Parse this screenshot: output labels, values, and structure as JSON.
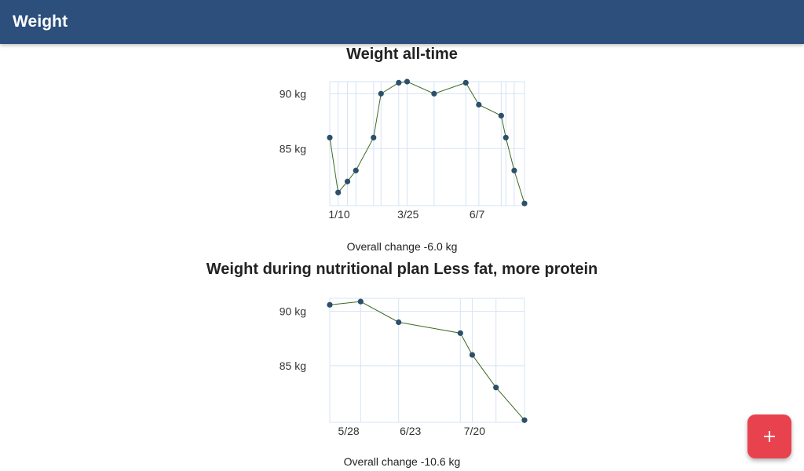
{
  "appbar": {
    "title": "Weight"
  },
  "fab": {
    "icon": "plus-icon",
    "color": "#e8424f"
  },
  "colors": {
    "appbar": "#2c4f7c",
    "line": "#3a6b1f",
    "point": "#2c4f6b",
    "grid": "#d6e3f5"
  },
  "charts": [
    {
      "title": "Weight all-time",
      "overall_change": "Overall change -6.0 kg"
    },
    {
      "title": "Weight during nutritional plan Less fat, more protein",
      "overall_change": "Overall change -10.6 kg"
    }
  ],
  "chart_data": [
    {
      "type": "line",
      "title": "Weight all-time",
      "ylabel_unit": "kg",
      "y_ticks": [
        {
          "value": 85,
          "label": "85 kg"
        },
        {
          "value": 90,
          "label": "90 kg"
        }
      ],
      "x_ticks": [
        {
          "x": 0,
          "label": "1/10"
        },
        {
          "x": 74,
          "label": "3/25"
        },
        {
          "x": 148,
          "label": "6/7"
        }
      ],
      "xlim": [
        0,
        209
      ],
      "ylim": [
        79.8,
        91.1
      ],
      "grid": true,
      "points": [
        {
          "x": 0,
          "y": 86.0
        },
        {
          "x": 9,
          "y": 81.0
        },
        {
          "x": 19,
          "y": 82.0
        },
        {
          "x": 28,
          "y": 83.0
        },
        {
          "x": 47,
          "y": 86.0
        },
        {
          "x": 55,
          "y": 90.0
        },
        {
          "x": 74,
          "y": 91.0
        },
        {
          "x": 83,
          "y": 91.1
        },
        {
          "x": 112,
          "y": 90.0
        },
        {
          "x": 146,
          "y": 91.0
        },
        {
          "x": 160,
          "y": 89.0
        },
        {
          "x": 184,
          "y": 88.0
        },
        {
          "x": 189,
          "y": 86.0
        },
        {
          "x": 198,
          "y": 83.0
        },
        {
          "x": 209,
          "y": 80.0
        }
      ]
    },
    {
      "type": "line",
      "title": "Weight during nutritional plan Less fat, more protein",
      "ylabel_unit": "kg",
      "y_ticks": [
        {
          "value": 85,
          "label": "85 kg"
        },
        {
          "value": 90,
          "label": "90 kg"
        }
      ],
      "x_ticks": [
        {
          "x": 4,
          "label": "5/28"
        },
        {
          "x": 30,
          "label": "6/23"
        },
        {
          "x": 57,
          "label": "7/20"
        }
      ],
      "xlim": [
        0,
        82
      ],
      "ylim": [
        79.8,
        91.2
      ],
      "grid": true,
      "points": [
        {
          "x": 0,
          "y": 90.6
        },
        {
          "x": 13,
          "y": 90.9
        },
        {
          "x": 29,
          "y": 89.0
        },
        {
          "x": 55,
          "y": 88.0
        },
        {
          "x": 60,
          "y": 86.0
        },
        {
          "x": 70,
          "y": 83.0
        },
        {
          "x": 82,
          "y": 80.0
        }
      ]
    }
  ]
}
